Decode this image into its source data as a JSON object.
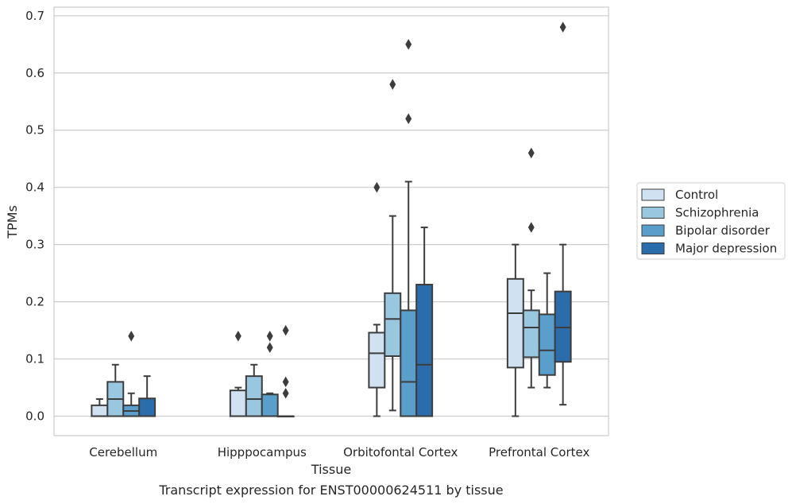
{
  "chart_data": {
    "type": "boxplot",
    "title": "",
    "caption": "Transcript expression for ENST00000624511 by tissue",
    "xlabel": "Tissue",
    "ylabel": "TPMs",
    "ylim": [
      -0.034,
      0.715
    ],
    "yticks": [
      0.0,
      0.1,
      0.2,
      0.3,
      0.4,
      0.5,
      0.6,
      0.7
    ],
    "ytick_labels": [
      "0.0",
      "0.1",
      "0.2",
      "0.3",
      "0.4",
      "0.5",
      "0.6",
      "0.7"
    ],
    "grid": "horizontal",
    "legend_position": "right",
    "categories": [
      "Cerebellum",
      "Hipppocampus",
      "Orbitofontal Cortex",
      "Prefrontal Cortex"
    ],
    "series": [
      {
        "name": "Control",
        "color": "#d0e1f1",
        "boxes": [
          {
            "min": 0.0,
            "q1": 0.0,
            "median": 0.0,
            "q3": 0.019,
            "max": 0.03,
            "outliers": []
          },
          {
            "min": 0.0,
            "q1": 0.0,
            "median": 0.0,
            "q3": 0.045,
            "max": 0.05,
            "outliers": [
              0.14
            ]
          },
          {
            "min": 0.0,
            "q1": 0.05,
            "median": 0.11,
            "q3": 0.146,
            "max": 0.16,
            "outliers": [
              0.4
            ]
          },
          {
            "min": 0.0,
            "q1": 0.085,
            "median": 0.18,
            "q3": 0.24,
            "max": 0.3,
            "outliers": []
          }
        ]
      },
      {
        "name": "Schizophrenia",
        "color": "#9ac7e0",
        "boxes": [
          {
            "min": 0.0,
            "q1": 0.0,
            "median": 0.03,
            "q3": 0.06,
            "max": 0.09,
            "outliers": []
          },
          {
            "min": 0.0,
            "q1": 0.0,
            "median": 0.03,
            "q3": 0.07,
            "max": 0.09,
            "outliers": []
          },
          {
            "min": 0.01,
            "q1": 0.105,
            "median": 0.17,
            "q3": 0.215,
            "max": 0.35,
            "outliers": [
              0.58
            ]
          },
          {
            "min": 0.05,
            "q1": 0.103,
            "median": 0.155,
            "q3": 0.185,
            "max": 0.22,
            "outliers": [
              0.33,
              0.46
            ]
          }
        ]
      },
      {
        "name": "Bipolar disorder",
        "color": "#5a9fcc",
        "boxes": [
          {
            "min": 0.0,
            "q1": 0.0,
            "median": 0.009,
            "q3": 0.019,
            "max": 0.04,
            "outliers": [
              0.14
            ]
          },
          {
            "min": 0.0,
            "q1": 0.0,
            "median": 0.0,
            "q3": 0.038,
            "max": 0.04,
            "outliers": [
              0.12,
              0.14
            ]
          },
          {
            "min": 0.0,
            "q1": 0.0,
            "median": 0.06,
            "q3": 0.185,
            "max": 0.41,
            "outliers": [
              0.52,
              0.65
            ]
          },
          {
            "min": 0.05,
            "q1": 0.072,
            "median": 0.115,
            "q3": 0.178,
            "max": 0.25,
            "outliers": []
          }
        ]
      },
      {
        "name": "Major depression",
        "color": "#2b6daa",
        "boxes": [
          {
            "min": 0.0,
            "q1": 0.0,
            "median": 0.0,
            "q3": 0.031,
            "max": 0.07,
            "outliers": []
          },
          {
            "min": 0.0,
            "q1": 0.0,
            "median": 0.0,
            "q3": 0.0,
            "max": 0.0,
            "outliers": [
              0.04,
              0.06,
              0.15
            ]
          },
          {
            "min": 0.0,
            "q1": 0.0,
            "median": 0.09,
            "q3": 0.23,
            "max": 0.33,
            "outliers": []
          },
          {
            "min": 0.02,
            "q1": 0.095,
            "median": 0.155,
            "q3": 0.218,
            "max": 0.3,
            "outliers": [
              0.68
            ]
          }
        ]
      }
    ]
  }
}
